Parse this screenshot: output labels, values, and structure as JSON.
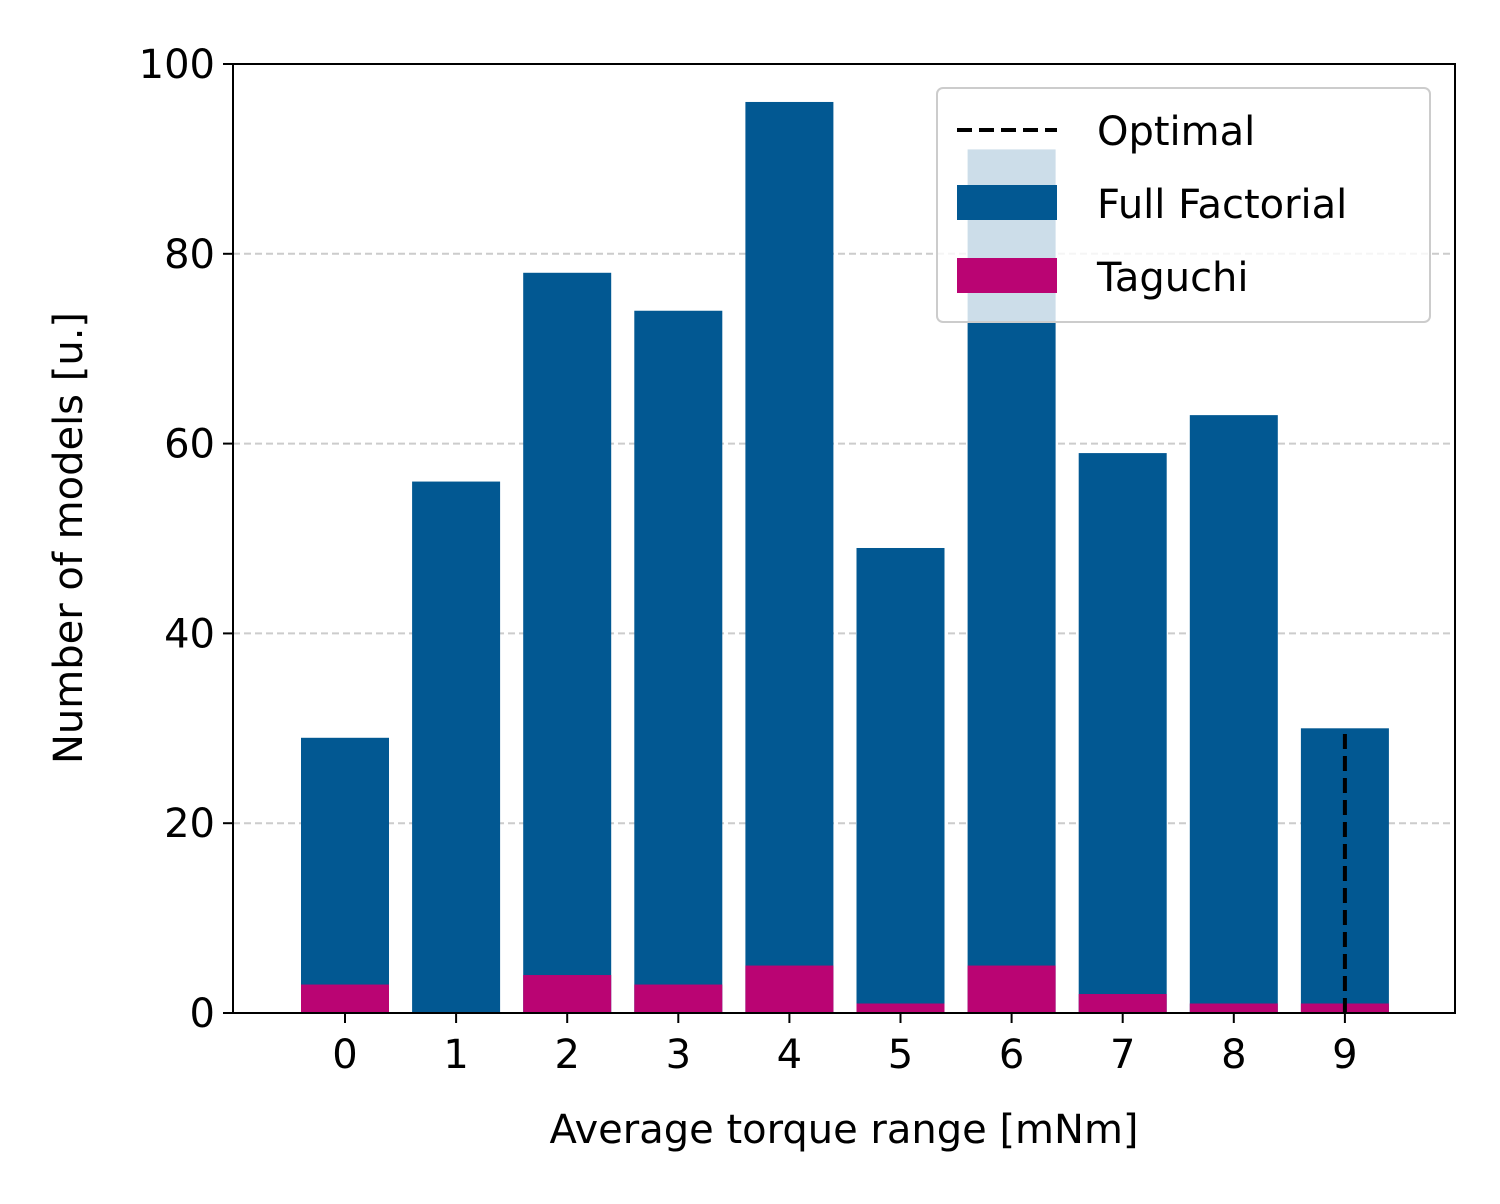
{
  "chart_data": {
    "type": "bar",
    "stacked": false,
    "xlabel": "Average torque range [mNm]",
    "ylabel": "Number of models [u.]",
    "categories": [
      "0",
      "1",
      "2",
      "3",
      "4",
      "5",
      "6",
      "7",
      "8",
      "9"
    ],
    "ylim": [
      0,
      100
    ],
    "yticks": [
      0,
      20,
      40,
      60,
      80,
      100
    ],
    "grid": "y-dashed",
    "legend_position": "top-right",
    "series": [
      {
        "name": "Full Factorial",
        "color": "#025892",
        "values": [
          29,
          56,
          78,
          74,
          96,
          49,
          91,
          59,
          63,
          30
        ]
      },
      {
        "name": "Taguchi",
        "color": "#BA0473",
        "values": [
          3,
          0,
          4,
          3,
          5,
          1,
          5,
          2,
          1,
          1
        ]
      }
    ],
    "reference_line": {
      "name": "Optimal",
      "x": 9,
      "y_end": 30,
      "style": "dashed",
      "color": "#000000"
    }
  }
}
